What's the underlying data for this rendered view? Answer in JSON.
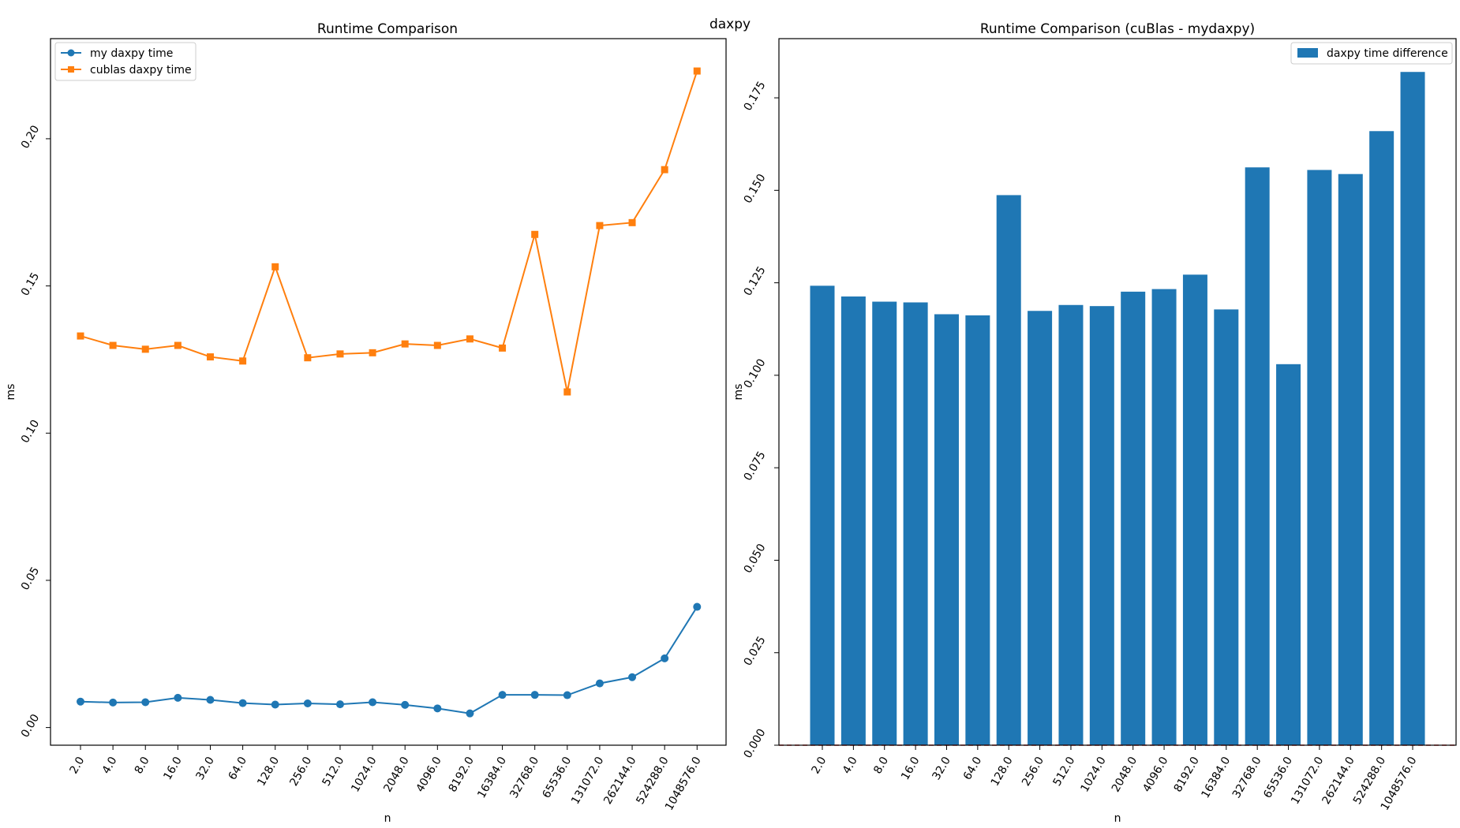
{
  "figure": {
    "suptitle": "daxpy"
  },
  "chart_data": [
    {
      "type": "line",
      "title": "Runtime Comparison",
      "xlabel": "n",
      "ylabel": "ms",
      "categories": [
        "2.0",
        "4.0",
        "8.0",
        "16.0",
        "32.0",
        "64.0",
        "128.0",
        "256.0",
        "512.0",
        "1024.0",
        "2048.0",
        "4096.0",
        "8192.0",
        "16384.0",
        "32768.0",
        "65536.0",
        "131072.0",
        "262144.0",
        "524288.0",
        "1048576.0"
      ],
      "yticks": [
        "0.00",
        "0.05",
        "0.10",
        "0.15",
        "0.20"
      ],
      "ylim": [
        -0.006,
        0.234
      ],
      "legend_position": "upper-left",
      "grid": false,
      "series": [
        {
          "name": "my daxpy time",
          "color": "#1f77b4",
          "marker": "circle",
          "values": [
            0.0088,
            0.0085,
            0.0086,
            0.0101,
            0.0094,
            0.0083,
            0.0078,
            0.0082,
            0.0079,
            0.0086,
            0.0077,
            0.0065,
            0.0048,
            0.0111,
            0.0111,
            0.011,
            0.015,
            0.0171,
            0.0235,
            0.041
          ]
        },
        {
          "name": "cublas daxpy time",
          "color": "#ff7f0e",
          "marker": "square",
          "values": [
            0.133,
            0.1298,
            0.1285,
            0.1298,
            0.1259,
            0.1245,
            0.1565,
            0.1256,
            0.1269,
            0.1273,
            0.1303,
            0.1298,
            0.132,
            0.1289,
            0.1675,
            0.114,
            0.1705,
            0.1715,
            0.1895,
            0.223
          ]
        }
      ]
    },
    {
      "type": "bar",
      "title": "Runtime Comparison (cuBlas - mydaxpy)",
      "xlabel": "n",
      "ylabel": "ms",
      "categories": [
        "2.0",
        "4.0",
        "8.0",
        "16.0",
        "32.0",
        "64.0",
        "128.0",
        "256.0",
        "512.0",
        "1024.0",
        "2048.0",
        "4096.0",
        "8192.0",
        "16384.0",
        "32768.0",
        "65536.0",
        "131072.0",
        "262144.0",
        "524288.0",
        "1048576.0"
      ],
      "yticks": [
        "0.000",
        "0.025",
        "0.050",
        "0.075",
        "0.100",
        "0.125",
        "0.150",
        "0.175"
      ],
      "ylim": [
        0,
        0.191
      ],
      "legend_position": "upper-right",
      "grid": false,
      "reference_line": {
        "y": 0,
        "color": "#d62728",
        "style": "dashed"
      },
      "series": [
        {
          "name": "daxpy time difference",
          "color": "#1f77b4",
          "values": [
            0.1242,
            0.1213,
            0.1199,
            0.1197,
            0.1165,
            0.1162,
            0.1487,
            0.1174,
            0.119,
            0.1187,
            0.1226,
            0.1233,
            0.1272,
            0.1178,
            0.1562,
            0.103,
            0.1555,
            0.1544,
            0.166,
            0.182
          ]
        }
      ]
    }
  ]
}
